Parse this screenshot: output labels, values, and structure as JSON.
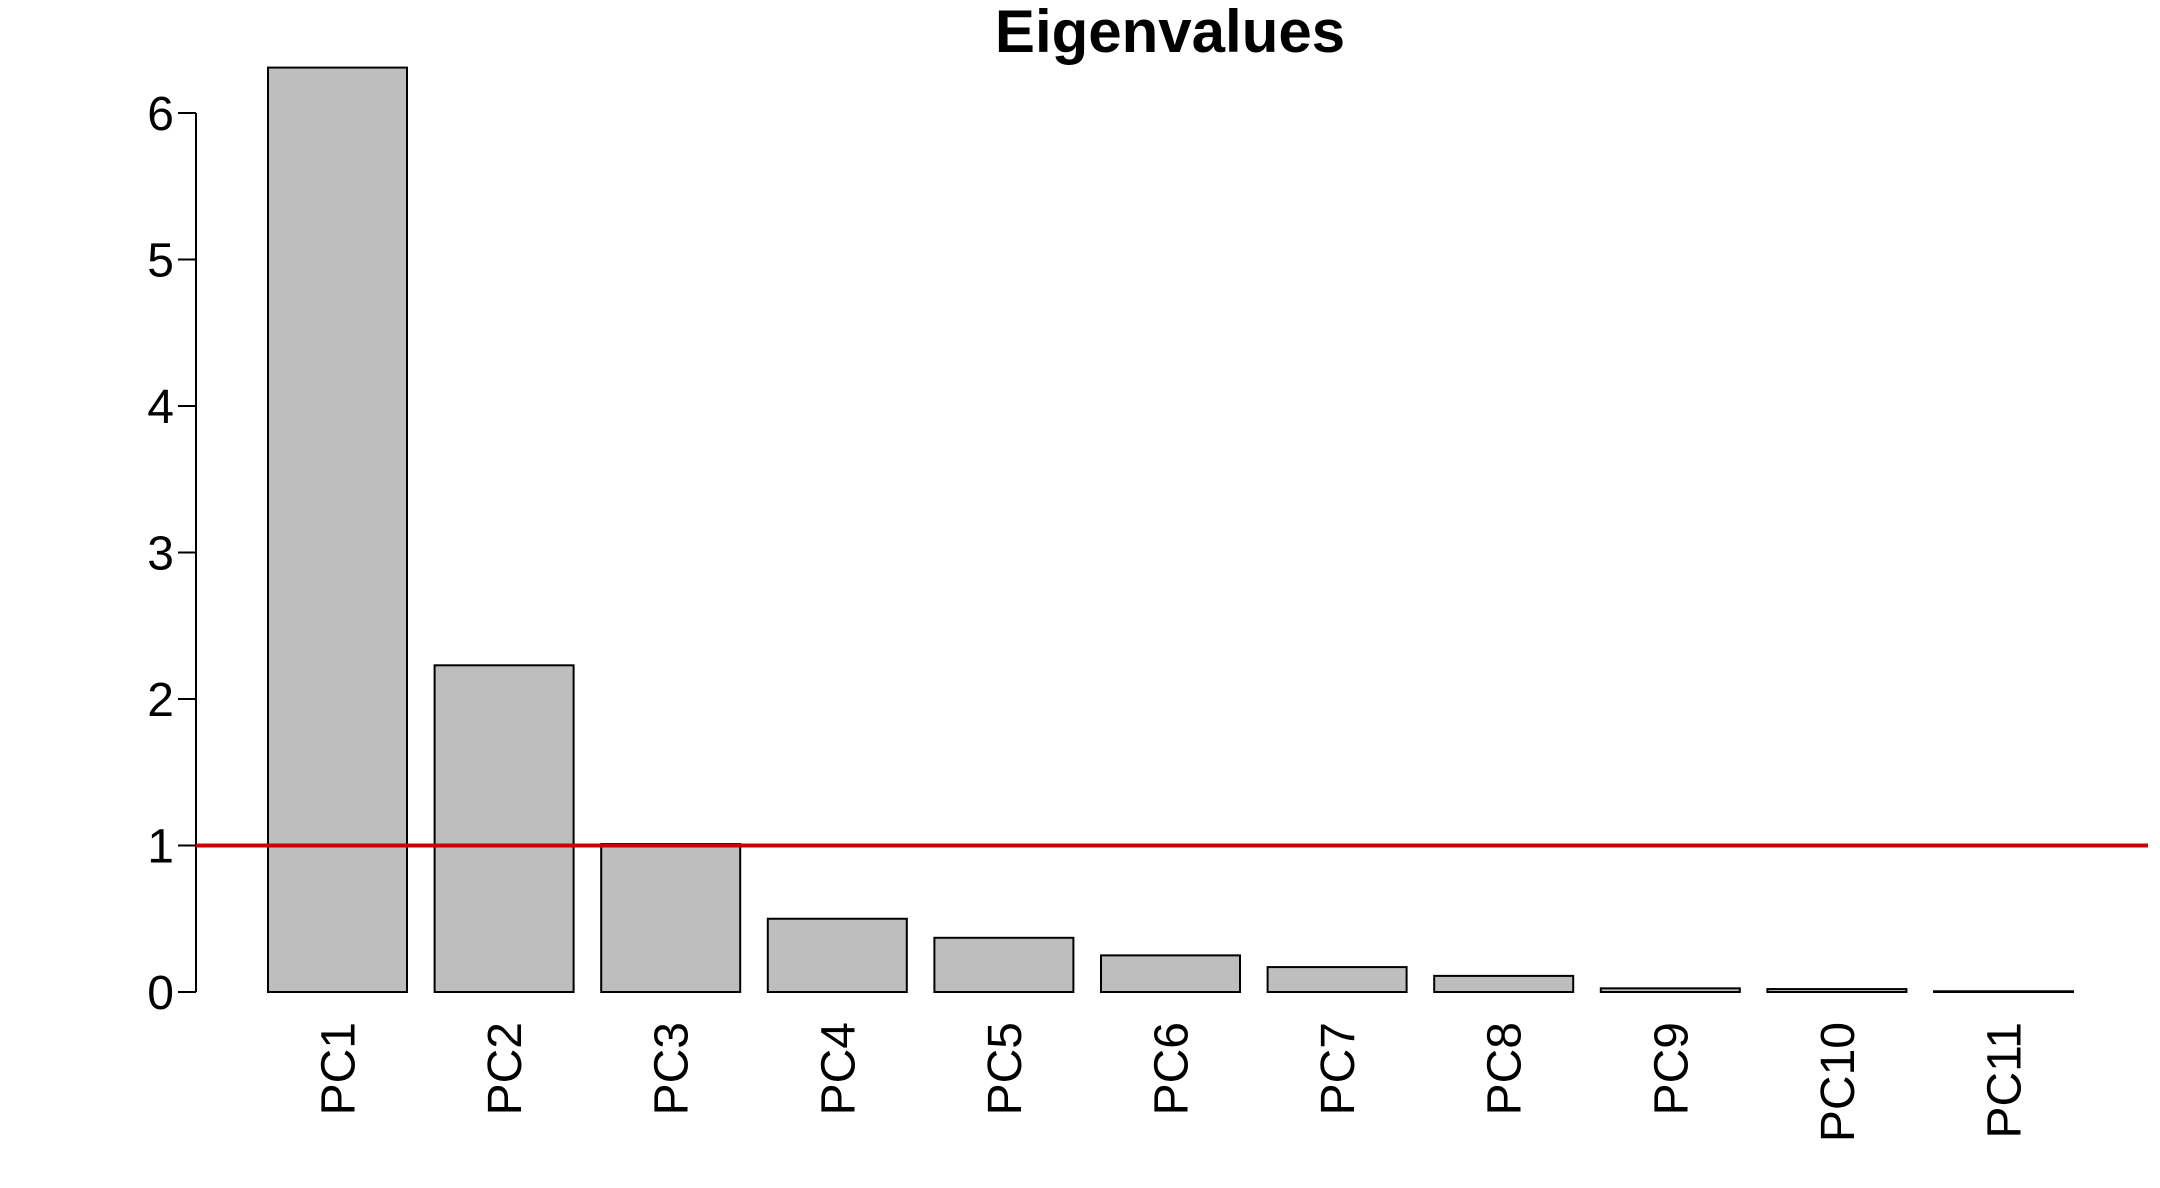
{
  "chart_data": {
    "type": "bar",
    "title": "Eigenvalues",
    "xlabel": "",
    "ylabel": "",
    "categories": [
      "PC1",
      "PC2",
      "PC3",
      "PC4",
      "PC5",
      "PC6",
      "PC7",
      "PC8",
      "PC9",
      "PC10",
      "PC11"
    ],
    "values": [
      6.31,
      2.23,
      1.01,
      0.5,
      0.37,
      0.25,
      0.17,
      0.11,
      0.025,
      0.02,
      0.005
    ],
    "ylim": [
      0,
      6
    ],
    "yticks": [
      "0",
      "1",
      "2",
      "3",
      "4",
      "5",
      "6"
    ],
    "reference_line": {
      "y": 1,
      "color": "#CC0000"
    },
    "bar_fill": "#BEBEBE",
    "bar_stroke": "#000000",
    "grid": false,
    "legend": "none"
  }
}
